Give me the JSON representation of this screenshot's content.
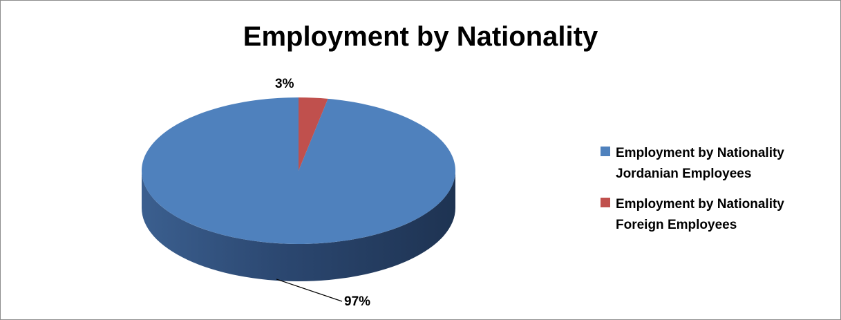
{
  "chart_data": {
    "type": "pie",
    "title": "Employment by Nationality",
    "series": [
      {
        "name": "Employment by Nationality Jordanian Employees",
        "value": 97,
        "label": "97%",
        "color": "#4f81bd",
        "legend_lines": [
          "Employment by Nationality",
          "Jordanian Employees"
        ]
      },
      {
        "name": "Employment by Nationality Foreign Employees",
        "value": 3,
        "label": "3%",
        "color": "#c0504d",
        "legend_lines": [
          "Employment by Nationality",
          "Foreign Employees"
        ]
      }
    ],
    "legend_position": "right",
    "style": "3d-pie"
  }
}
